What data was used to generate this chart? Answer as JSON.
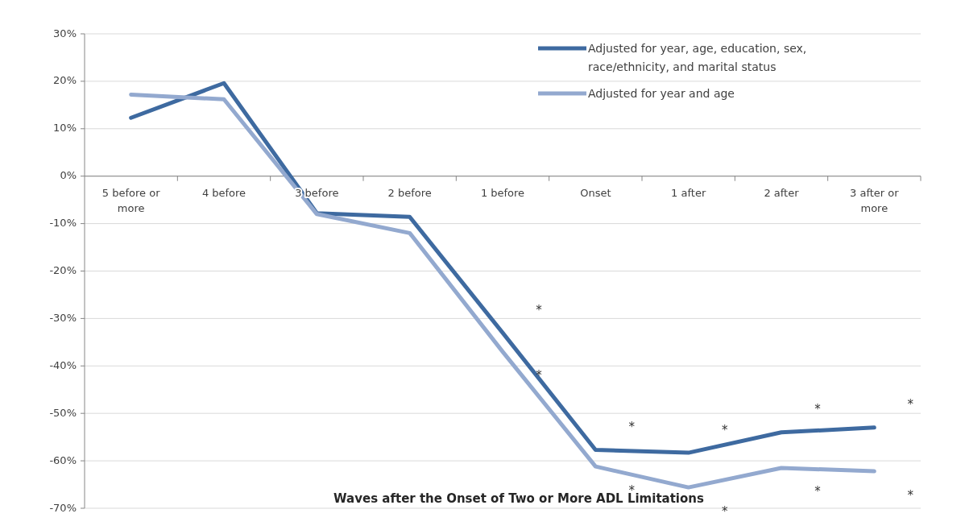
{
  "chart_data": {
    "type": "line",
    "xlabel": "Waves after the Onset of Two or More ADL Limitations",
    "categories": [
      "5 before or more",
      "4 before",
      "3 before",
      "2 before",
      "1 before",
      "Onset",
      "1 after",
      "2 after",
      "3 after or more"
    ],
    "series": [
      {
        "name": "Adjusted for year, age, education, sex, race/ethnicity, and marital status",
        "color": "#3e6aa0",
        "values": [
          12.3,
          19.6,
          -7.8,
          -8.6,
          -33,
          -57.7,
          -58.3,
          -54,
          -53
        ]
      },
      {
        "name": "Adjusted for year and age",
        "color": "#93a9cf",
        "values": [
          17.2,
          16.2,
          -8,
          -12,
          -37,
          -61.2,
          -65.6,
          -61.5,
          -62.2
        ]
      }
    ],
    "ylim": [
      -70,
      30
    ],
    "yticks": [
      {
        "value": -70,
        "label": "-70%"
      },
      {
        "value": -60,
        "label": "-60%"
      },
      {
        "value": -50,
        "label": "-50%"
      },
      {
        "value": -40,
        "label": "-40%"
      },
      {
        "value": -30,
        "label": "-30%"
      },
      {
        "value": -20,
        "label": "-20%"
      },
      {
        "value": -10,
        "label": "-10%"
      },
      {
        "value": 0,
        "label": "0%"
      },
      {
        "value": 10,
        "label": "10%"
      },
      {
        "value": 20,
        "label": "20%"
      },
      {
        "value": 30,
        "label": "30%"
      }
    ],
    "grid": "y",
    "legend": "top right",
    "marker": "none",
    "line_style": "solid",
    "annotations": [
      "*",
      "*",
      "*",
      "*",
      "*",
      "*",
      "*",
      "*",
      "*",
      "*"
    ]
  }
}
